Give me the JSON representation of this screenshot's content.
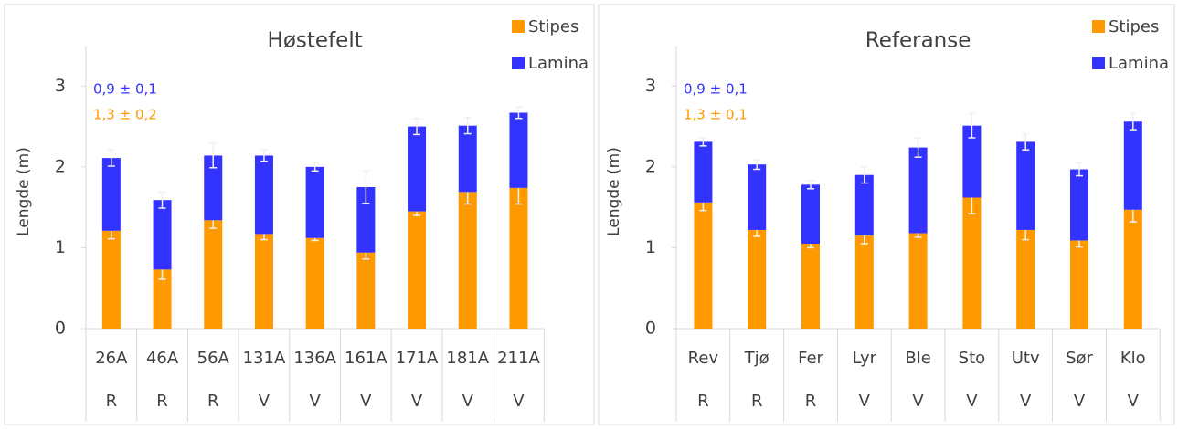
{
  "chart_data": [
    {
      "type": "bar",
      "stacked": true,
      "title": "Høstefelt",
      "y_label": "Lengde  (m)",
      "categories": [
        "26A",
        "46A",
        "56A",
        "131A",
        "136A",
        "161A",
        "171A",
        "181A",
        "211A"
      ],
      "sublabels": [
        "R",
        "R",
        "R",
        "V",
        "V",
        "V",
        "V",
        "V",
        "V"
      ],
      "series": [
        {
          "name": "Stipes",
          "color": "#ff9900",
          "values": [
            1.21,
            0.73,
            1.34,
            1.17,
            1.12,
            0.94,
            1.45,
            1.69,
            1.74
          ],
          "errors": [
            0.1,
            0.12,
            0.1,
            0.07,
            0.03,
            0.08,
            0.05,
            0.15,
            0.2
          ]
        },
        {
          "name": "Lamina",
          "color": "#3333ff",
          "values": [
            0.9,
            0.86,
            0.8,
            0.97,
            0.88,
            0.81,
            1.05,
            0.82,
            0.93
          ],
          "errors": [
            0.1,
            0.1,
            0.15,
            0.07,
            0.05,
            0.2,
            0.1,
            0.1,
            0.07
          ]
        }
      ],
      "annotations": [
        {
          "text": "0,9 ± 0,1",
          "color": "#3333ff"
        },
        {
          "text": "1,3 ± 0,2",
          "color": "#ff9900"
        }
      ],
      "ylim": [
        0,
        3.5
      ],
      "yticks": [
        0,
        1,
        2,
        3
      ],
      "legend": "top-right"
    },
    {
      "type": "bar",
      "stacked": true,
      "title": "Referanse",
      "y_label": "Lengde  (m)",
      "categories": [
        "Rev",
        "Tjø",
        "Fer",
        "Lyr",
        "Ble",
        "Sto",
        "Utv",
        "Sør",
        "Klo"
      ],
      "sublabels": [
        "R",
        "R",
        "R",
        "V",
        "V",
        "V",
        "V",
        "V",
        "V"
      ],
      "series": [
        {
          "name": "Stipes",
          "color": "#ff9900",
          "values": [
            1.56,
            1.22,
            1.05,
            1.15,
            1.18,
            1.62,
            1.22,
            1.09,
            1.47
          ],
          "errors": [
            0.1,
            0.08,
            0.05,
            0.1,
            0.05,
            0.2,
            0.12,
            0.08,
            0.15
          ]
        },
        {
          "name": "Lamina",
          "color": "#3333ff",
          "values": [
            0.75,
            0.81,
            0.73,
            0.75,
            1.06,
            0.89,
            1.09,
            0.88,
            1.09
          ],
          "errors": [
            0.05,
            0.06,
            0.05,
            0.1,
            0.12,
            0.15,
            0.1,
            0.08,
            0.1
          ]
        }
      ],
      "annotations": [
        {
          "text": "0,9 ± 0,1",
          "color": "#3333ff"
        },
        {
          "text": "1,3 ± 0,1",
          "color": "#ff9900"
        }
      ],
      "ylim": [
        0,
        3.5
      ],
      "yticks": [
        0,
        1,
        2,
        3
      ],
      "legend": "top-right"
    }
  ]
}
